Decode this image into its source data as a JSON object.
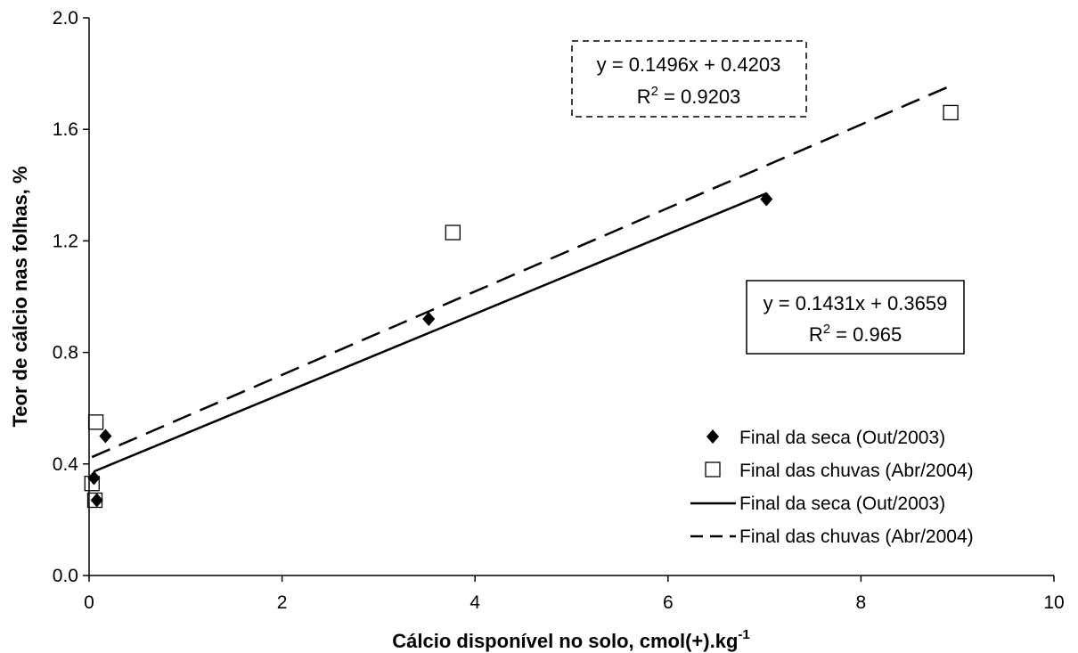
{
  "chart_data": {
    "type": "scatter",
    "xlabel": "Cálcio disponível no solo, cmol(+).kg",
    "xlabel_sup": "-1",
    "ylabel": "Teor de cálcio nas folhas, %",
    "xlim": [
      0,
      10
    ],
    "ylim": [
      0.0,
      2.0
    ],
    "x_ticks": [
      "0",
      "2",
      "4",
      "6",
      "8",
      "10"
    ],
    "y_ticks": [
      "0.0",
      "0.4",
      "0.8",
      "1.2",
      "1.6",
      "2.0"
    ],
    "grid": false,
    "legend_position": "right",
    "series": [
      {
        "name": "Final da seca (Out/2003)",
        "marker": "diamond-filled",
        "color": "#000000",
        "points": [
          [
            0.05,
            0.35
          ],
          [
            0.08,
            0.27
          ],
          [
            0.17,
            0.5
          ],
          [
            3.52,
            0.92
          ],
          [
            7.02,
            1.35
          ]
        ]
      },
      {
        "name": "Final das chuvas (Abr/2004)",
        "marker": "square-open",
        "color": "#000000",
        "points": [
          [
            0.03,
            0.33
          ],
          [
            0.06,
            0.27
          ],
          [
            0.07,
            0.55
          ],
          [
            3.77,
            1.23
          ],
          [
            8.93,
            1.66
          ]
        ]
      }
    ],
    "trendlines": [
      {
        "name": "Final da seca (Out/2003)",
        "style": "solid",
        "slope": 0.1431,
        "intercept": 0.3659,
        "x_range": [
          0.05,
          7.02
        ],
        "equation": "y = 0.1431x + 0.3659",
        "r2_prefix": "R",
        "r2_sup": "2",
        "r2_value": " = 0.965",
        "box_style": "solid"
      },
      {
        "name": "Final das chuvas (Abr/2004)",
        "style": "dashed",
        "slope": 0.1496,
        "intercept": 0.4203,
        "x_range": [
          0.03,
          8.93
        ],
        "equation": "y = 0.1496x + 0.4203",
        "r2_prefix": "R",
        "r2_sup": "2",
        "r2_value": " = 0.9203",
        "box_style": "dashed"
      }
    ]
  }
}
